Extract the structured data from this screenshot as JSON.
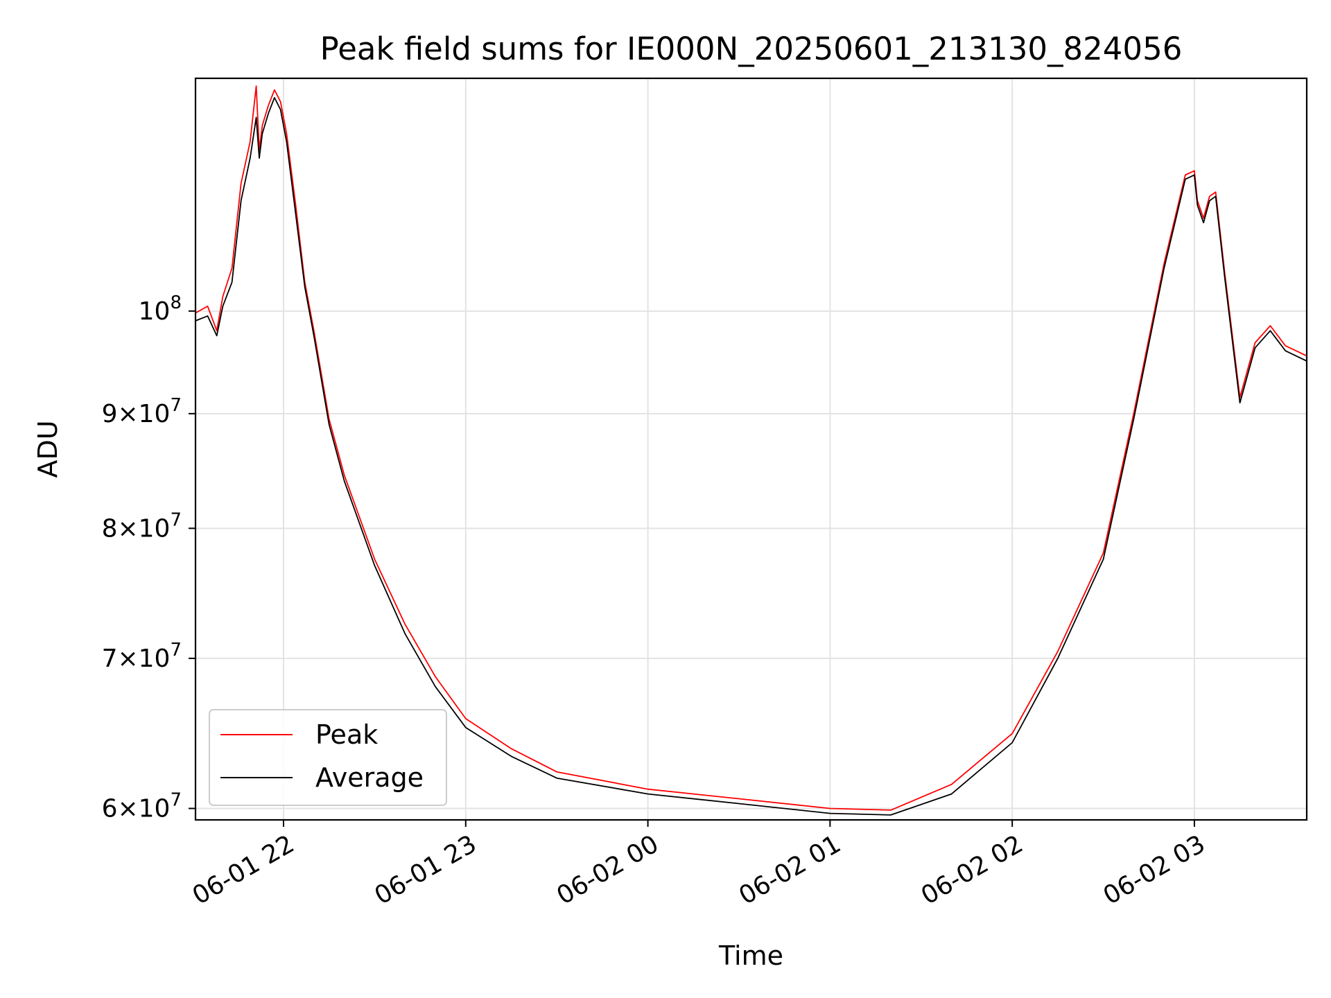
{
  "chart_data": {
    "type": "line",
    "title": "Peak field sums for IE000N_20250601_213130_824056",
    "xlabel": "Time",
    "ylabel": "ADU",
    "yscale": "log",
    "xlim": [
      "2025-06-01 21:31",
      "2025-06-02 03:37"
    ],
    "ylim": [
      59300000,
      127000000
    ],
    "grid": true,
    "legend": "lower-left",
    "x_ticks": [
      {
        "value": "2025-06-01 22:00",
        "label": "06-01 22"
      },
      {
        "value": "2025-06-01 23:00",
        "label": "06-01 23"
      },
      {
        "value": "2025-06-02 00:00",
        "label": "06-02 00"
      },
      {
        "value": "2025-06-02 01:00",
        "label": "06-02 01"
      },
      {
        "value": "2025-06-02 02:00",
        "label": "06-02 02"
      },
      {
        "value": "2025-06-02 03:00",
        "label": "06-02 03"
      }
    ],
    "y_ticks": [
      {
        "value": 60000000,
        "base": "6",
        "exp": "7"
      },
      {
        "value": 70000000,
        "base": "7",
        "exp": "7"
      },
      {
        "value": 80000000,
        "base": "8",
        "exp": "7"
      },
      {
        "value": 90000000,
        "base": "9",
        "exp": "7"
      },
      {
        "value": 100000000,
        "base": "10",
        "exp": "8"
      }
    ],
    "series": [
      {
        "name": "Peak",
        "color": "#ff0000",
        "x": [
          "2025-06-01 21:31",
          "2025-06-01 21:35",
          "2025-06-01 21:38",
          "2025-06-01 21:40",
          "2025-06-01 21:43",
          "2025-06-01 21:46",
          "2025-06-01 21:49",
          "2025-06-01 21:51",
          "2025-06-01 21:52",
          "2025-06-01 21:53",
          "2025-06-01 21:55",
          "2025-06-01 21:57",
          "2025-06-01 21:59",
          "2025-06-01 22:01",
          "2025-06-01 22:04",
          "2025-06-01 22:07",
          "2025-06-01 22:10",
          "2025-06-01 22:15",
          "2025-06-01 22:20",
          "2025-06-01 22:30",
          "2025-06-01 22:40",
          "2025-06-01 22:50",
          "2025-06-01 23:00",
          "2025-06-01 23:15",
          "2025-06-01 23:30",
          "2025-06-02 00:00",
          "2025-06-02 00:30",
          "2025-06-02 01:00",
          "2025-06-02 01:20",
          "2025-06-02 01:40",
          "2025-06-02 02:00",
          "2025-06-02 02:15",
          "2025-06-02 02:30",
          "2025-06-02 02:40",
          "2025-06-02 02:50",
          "2025-06-02 02:57",
          "2025-06-02 03:00",
          "2025-06-02 03:01",
          "2025-06-02 03:03",
          "2025-06-02 03:05",
          "2025-06-02 03:07",
          "2025-06-02 03:10",
          "2025-06-02 03:15",
          "2025-06-02 03:20",
          "2025-06-02 03:25",
          "2025-06-02 03:30",
          "2025-06-02 03:37"
        ],
        "values": [
          99800000,
          100500000,
          98000000,
          101500000,
          104500000,
          114000000,
          119000000,
          126000000,
          118000000,
          121000000,
          123500000,
          125500000,
          124000000,
          120000000,
          111500000,
          103000000,
          98000000,
          89500000,
          84500000,
          77500000,
          72500000,
          68700000,
          65800000,
          63800000,
          62300000,
          61200000,
          60600000,
          60000000,
          59900000,
          61500000,
          64800000,
          70500000,
          78000000,
          90000000,
          105000000,
          115000000,
          115500000,
          112000000,
          110000000,
          112500000,
          113000000,
          104000000,
          91500000,
          96800000,
          98500000,
          96500000,
          95500000
        ]
      },
      {
        "name": "Average",
        "color": "#000000",
        "x": [
          "2025-06-01 21:31",
          "2025-06-01 21:35",
          "2025-06-01 21:38",
          "2025-06-01 21:40",
          "2025-06-01 21:43",
          "2025-06-01 21:46",
          "2025-06-01 21:49",
          "2025-06-01 21:51",
          "2025-06-01 21:52",
          "2025-06-01 21:53",
          "2025-06-01 21:55",
          "2025-06-01 21:57",
          "2025-06-01 21:59",
          "2025-06-01 22:01",
          "2025-06-01 22:04",
          "2025-06-01 22:07",
          "2025-06-01 22:10",
          "2025-06-01 22:15",
          "2025-06-01 22:20",
          "2025-06-01 22:30",
          "2025-06-01 22:40",
          "2025-06-01 22:50",
          "2025-06-01 23:00",
          "2025-06-01 23:15",
          "2025-06-01 23:30",
          "2025-06-02 00:00",
          "2025-06-02 00:30",
          "2025-06-02 01:00",
          "2025-06-02 01:20",
          "2025-06-02 01:40",
          "2025-06-02 02:00",
          "2025-06-02 02:15",
          "2025-06-02 02:30",
          "2025-06-02 02:40",
          "2025-06-02 02:50",
          "2025-06-02 02:57",
          "2025-06-02 03:00",
          "2025-06-02 03:01",
          "2025-06-02 03:03",
          "2025-06-02 03:05",
          "2025-06-02 03:07",
          "2025-06-02 03:10",
          "2025-06-02 03:15",
          "2025-06-02 03:20",
          "2025-06-02 03:25",
          "2025-06-02 03:30",
          "2025-06-02 03:37"
        ],
        "values": [
          99000000,
          99500000,
          97500000,
          100500000,
          103000000,
          112000000,
          117000000,
          122000000,
          117000000,
          120000000,
          122500000,
          124500000,
          123000000,
          119000000,
          110500000,
          102500000,
          97500000,
          89000000,
          84000000,
          77000000,
          71800000,
          68000000,
          65200000,
          63300000,
          61900000,
          60900000,
          60300000,
          59700000,
          59600000,
          60900000,
          64200000,
          70000000,
          77500000,
          89500000,
          104500000,
          114500000,
          115000000,
          111500000,
          109500000,
          112000000,
          112500000,
          103500000,
          91000000,
          96300000,
          98000000,
          96000000,
          95000000
        ]
      }
    ]
  }
}
